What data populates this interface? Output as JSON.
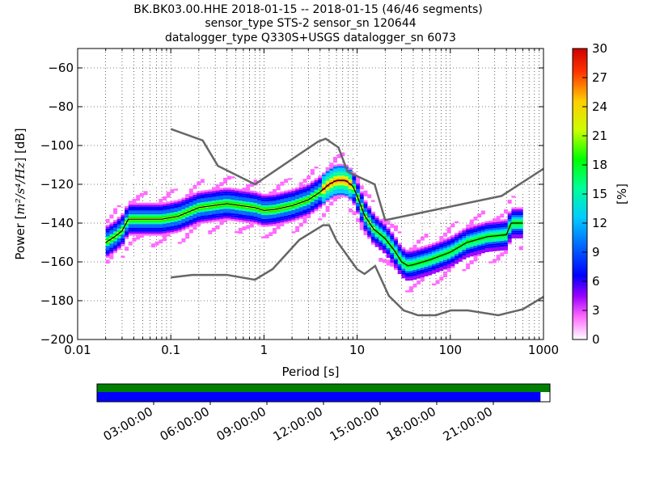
{
  "title": {
    "line1": "BK.BK03.00.HHE   2018-01-15 -- 2018-01-15  (46/46 segments)",
    "line2": "sensor_type STS-2 sensor_sn 120644",
    "line3": "datalogger_type Q330S+USGS datalogger_sn 6073"
  },
  "chart_data": {
    "type": "heatmap",
    "xlabel": "Period [s]",
    "ylabel_prefix": "Power [",
    "ylabel_math": "m²/s⁴/Hz",
    "ylabel_suffix": "] [dB]",
    "x_scale": "log",
    "xlim": [
      0.01,
      1000
    ],
    "ylim": [
      -200,
      -50
    ],
    "x_ticks": [
      {
        "value": 0.01,
        "label": "0.01"
      },
      {
        "value": 0.1,
        "label": "0.1"
      },
      {
        "value": 1,
        "label": "1"
      },
      {
        "value": 10,
        "label": "10"
      },
      {
        "value": 100,
        "label": "100"
      },
      {
        "value": 1000,
        "label": "1000"
      }
    ],
    "y_ticks": [
      {
        "value": -60,
        "label": "−60"
      },
      {
        "value": -80,
        "label": "−80"
      },
      {
        "value": -100,
        "label": "−100"
      },
      {
        "value": -120,
        "label": "−120"
      },
      {
        "value": -140,
        "label": "−140"
      },
      {
        "value": -160,
        "label": "−160"
      },
      {
        "value": -180,
        "label": "−180"
      },
      {
        "value": -200,
        "label": "−200"
      }
    ],
    "grid": "dotted",
    "high_noise_model": [
      [
        0.1,
        -91.5
      ],
      [
        0.22,
        -97.4
      ],
      [
        0.32,
        -110.5
      ],
      [
        0.8,
        -120
      ],
      [
        3.8,
        -98
      ],
      [
        4.6,
        -96.5
      ],
      [
        6.3,
        -101
      ],
      [
        7.9,
        -113.5
      ],
      [
        15.4,
        -120
      ],
      [
        20,
        -138.5
      ],
      [
        354.8,
        -126
      ],
      [
        1000,
        -112
      ]
    ],
    "low_noise_model": [
      [
        0.1,
        -168
      ],
      [
        0.17,
        -166.7
      ],
      [
        0.4,
        -166.7
      ],
      [
        0.8,
        -169.2
      ],
      [
        1.24,
        -163.7
      ],
      [
        2.4,
        -148.6
      ],
      [
        4.3,
        -141.1
      ],
      [
        5,
        -141.1
      ],
      [
        6,
        -149
      ],
      [
        10,
        -163.8
      ],
      [
        12,
        -166.2
      ],
      [
        15.6,
        -162.1
      ],
      [
        21.9,
        -177.5
      ],
      [
        31.6,
        -185
      ],
      [
        45,
        -187.5
      ],
      [
        70,
        -187.5
      ],
      [
        101,
        -185
      ],
      [
        154,
        -185
      ],
      [
        328,
        -187.5
      ],
      [
        600,
        -184.4
      ],
      [
        1000,
        -178
      ]
    ],
    "median": [
      [
        0.02,
        -150
      ],
      [
        0.025,
        -147
      ],
      [
        0.03,
        -144
      ],
      [
        0.035,
        -138
      ],
      [
        0.05,
        -138
      ],
      [
        0.08,
        -138
      ],
      [
        0.12,
        -136.5
      ],
      [
        0.2,
        -132
      ],
      [
        0.4,
        -130
      ],
      [
        0.8,
        -132
      ],
      [
        1,
        -133.5
      ],
      [
        1.3,
        -133
      ],
      [
        2,
        -131
      ],
      [
        3,
        -128
      ],
      [
        4,
        -124
      ],
      [
        5,
        -120
      ],
      [
        6,
        -118
      ],
      [
        7.5,
        -118
      ],
      [
        9,
        -121
      ],
      [
        10,
        -126
      ],
      [
        12,
        -136
      ],
      [
        15,
        -143
      ],
      [
        20,
        -148
      ],
      [
        25,
        -154
      ],
      [
        30,
        -160
      ],
      [
        35,
        -162
      ],
      [
        40,
        -161.5
      ],
      [
        60,
        -159
      ],
      [
        100,
        -155
      ],
      [
        150,
        -150
      ],
      [
        250,
        -147
      ],
      [
        400,
        -146
      ],
      [
        450,
        -140
      ],
      [
        600,
        -140
      ]
    ],
    "density_band": {
      "mode_width_db": 8,
      "outlier_width_db": 24
    },
    "colorbar": {
      "label": "[%]",
      "range": [
        0,
        30
      ],
      "ticks": [
        {
          "value": 0,
          "label": "0"
        },
        {
          "value": 3,
          "label": "3"
        },
        {
          "value": 6,
          "label": "6"
        },
        {
          "value": 9,
          "label": "9"
        },
        {
          "value": 12,
          "label": "12"
        },
        {
          "value": 15,
          "label": "15"
        },
        {
          "value": 18,
          "label": "18"
        },
        {
          "value": 21,
          "label": "21"
        },
        {
          "value": 24,
          "label": "24"
        },
        {
          "value": 27,
          "label": "27"
        },
        {
          "value": 30,
          "label": "30"
        }
      ]
    },
    "coverage": {
      "range_hours": [
        0,
        24
      ],
      "data_coverage_end_hours": 23.5,
      "data_color": "#008000",
      "psd_color": "#0000ff",
      "ticks": [
        {
          "value": 3,
          "label": "03:00:00"
        },
        {
          "value": 6,
          "label": "06:00:00"
        },
        {
          "value": 9,
          "label": "09:00:00"
        },
        {
          "value": 12,
          "label": "12:00:00"
        },
        {
          "value": 15,
          "label": "15:00:00"
        },
        {
          "value": 18,
          "label": "18:00:00"
        },
        {
          "value": 21,
          "label": "21:00:00"
        }
      ]
    }
  }
}
